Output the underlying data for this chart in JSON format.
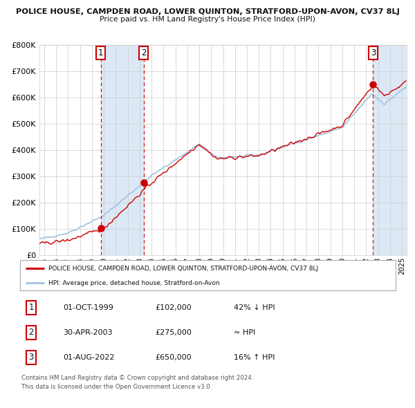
{
  "title": "POLICE HOUSE, CAMPDEN ROAD, LOWER QUINTON, STRATFORD-UPON-AVON, CV37 8LJ",
  "subtitle": "Price paid vs. HM Land Registry's House Price Index (HPI)",
  "legend_line1": "POLICE HOUSE, CAMPDEN ROAD, LOWER QUINTON, STRATFORD-UPON-AVON, CV37 8LJ",
  "legend_line2": "HPI: Average price, detached house, Stratford-on-Avon",
  "footer1": "Contains HM Land Registry data © Crown copyright and database right 2024.",
  "footer2": "This data is licensed under the Open Government Licence v3.0.",
  "sale_points": [
    {
      "label": "1",
      "date_str": "01-OCT-1999",
      "price_str": "£102,000",
      "hpi_str": "42% ↓ HPI",
      "year": 1999.75,
      "price": 102000
    },
    {
      "label": "2",
      "date_str": "30-APR-2003",
      "price_str": "£275,000",
      "hpi_str": "≈ HPI",
      "year": 2003.33,
      "price": 275000
    },
    {
      "label": "3",
      "date_str": "01-AUG-2022",
      "price_str": "£650,000",
      "hpi_str": "16% ↑ HPI",
      "year": 2022.58,
      "price": 650000
    }
  ],
  "hpi_color": "#a8c4e0",
  "price_color": "#cc0000",
  "shade_color": "#dce8f5",
  "dashed_color": "#cc0000",
  "ylim": [
    0,
    800000
  ],
  "yticks": [
    0,
    100000,
    200000,
    300000,
    400000,
    500000,
    600000,
    700000,
    800000
  ],
  "xlim_start": 1994.6,
  "xlim_end": 2025.4,
  "background_color": "#ffffff",
  "grid_color": "#cccccc"
}
